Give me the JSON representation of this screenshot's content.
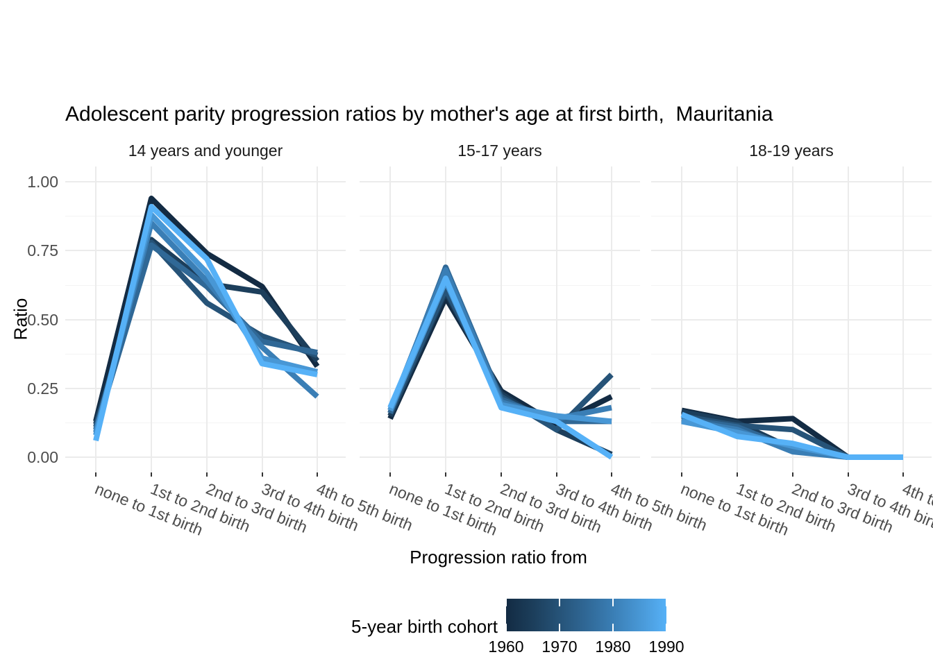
{
  "title": "Adolescent parity progression ratios by mother's age at first birth,  Mauritania",
  "y_axis": {
    "label": "Ratio",
    "tick_labels": [
      "1.00",
      "0.75",
      "0.50",
      "0.25",
      "0.00"
    ]
  },
  "x_axis": {
    "label": "Progression ratio from"
  },
  "legend": {
    "title": "5-year birth cohort",
    "tick_labels": [
      "1960",
      "1970",
      "1980",
      "1990"
    ],
    "gradient_low": "#132B43",
    "gradient_high": "#56B1F7"
  },
  "chart_data": {
    "type": "line",
    "title": "Adolescent parity progression ratios by mother's age at first birth,  Mauritania",
    "xlabel": "Progression ratio from",
    "ylabel": "Ratio",
    "ylim": [
      0,
      1
    ],
    "yticks": [
      0,
      0.25,
      0.5,
      0.75,
      1
    ],
    "ytick_labels": [
      "0.00",
      "0.25",
      "0.50",
      "0.75",
      "1.00"
    ],
    "grid": true,
    "legend": {
      "type": "colorbar",
      "title": "5-year birth cohort",
      "position": "bottom",
      "values": [
        1960,
        1970,
        1980,
        1990
      ],
      "low_color": "#132B43",
      "high_color": "#56B1F7"
    },
    "categories": [
      "none to 1st birth",
      "1st to 2nd birth",
      "2nd to 3rd birth",
      "3rd to 4th birth",
      "4th to 5th birth"
    ],
    "cohort_colors": [
      "#132B43",
      "#1C3E5B",
      "#265378",
      "#306896",
      "#3A7EB5",
      "#4897D5",
      "#56B1F7"
    ],
    "facets": [
      {
        "label": "14 years and younger",
        "series": [
          {
            "name": "1960",
            "values": [
              0.13,
              0.94,
              0.74,
              0.62,
              0.33
            ]
          },
          {
            "name": "1965",
            "values": [
              0.12,
              0.79,
              0.63,
              0.6,
              0.35
            ]
          },
          {
            "name": "1970",
            "values": [
              0.11,
              0.78,
              0.56,
              0.44,
              0.37
            ]
          },
          {
            "name": "1975",
            "values": [
              0.1,
              0.77,
              0.62,
              0.42,
              0.38
            ]
          },
          {
            "name": "1980",
            "values": [
              0.09,
              0.85,
              0.64,
              0.4,
              0.22
            ]
          },
          {
            "name": "1985",
            "values": [
              0.08,
              0.88,
              0.67,
              0.36,
              0.31
            ]
          },
          {
            "name": "1990",
            "values": [
              0.06,
              0.91,
              0.72,
              0.34,
              0.3
            ]
          }
        ]
      },
      {
        "label": "15-17 years",
        "series": [
          {
            "name": "1960",
            "values": [
              0.14,
              0.58,
              0.24,
              0.12,
              0.22
            ]
          },
          {
            "name": "1965",
            "values": [
              0.15,
              0.6,
              0.23,
              0.1,
              0.01
            ]
          },
          {
            "name": "1970",
            "values": [
              0.16,
              0.61,
              0.22,
              0.1,
              0.3
            ]
          },
          {
            "name": "1975",
            "values": [
              0.16,
              0.69,
              0.21,
              0.13,
              0.13
            ]
          },
          {
            "name": "1980",
            "values": [
              0.17,
              0.68,
              0.2,
              0.14,
              0.18
            ]
          },
          {
            "name": "1985",
            "values": [
              0.17,
              0.64,
              0.19,
              0.15,
              0.13
            ]
          },
          {
            "name": "1990",
            "values": [
              0.18,
              0.65,
              0.18,
              0.13,
              0.0
            ]
          }
        ]
      },
      {
        "label": "18-19 years",
        "series": [
          {
            "name": "1960",
            "values": [
              0.17,
              0.13,
              0.14,
              0.0,
              0.0
            ]
          },
          {
            "name": "1965",
            "values": [
              0.165,
              0.125,
              0.03,
              0.0,
              0.0
            ]
          },
          {
            "name": "1970",
            "values": [
              0.15,
              0.115,
              0.1,
              0.0,
              0.0
            ]
          },
          {
            "name": "1975",
            "values": [
              0.14,
              0.11,
              0.03,
              0.0,
              0.0
            ]
          },
          {
            "name": "1980",
            "values": [
              0.135,
              0.1,
              0.02,
              0.0,
              0.0
            ]
          },
          {
            "name": "1985",
            "values": [
              0.13,
              0.09,
              0.04,
              0.0,
              0.0
            ]
          },
          {
            "name": "1990",
            "values": [
              0.155,
              0.075,
              0.05,
              0.0,
              0.0
            ]
          }
        ]
      }
    ]
  }
}
